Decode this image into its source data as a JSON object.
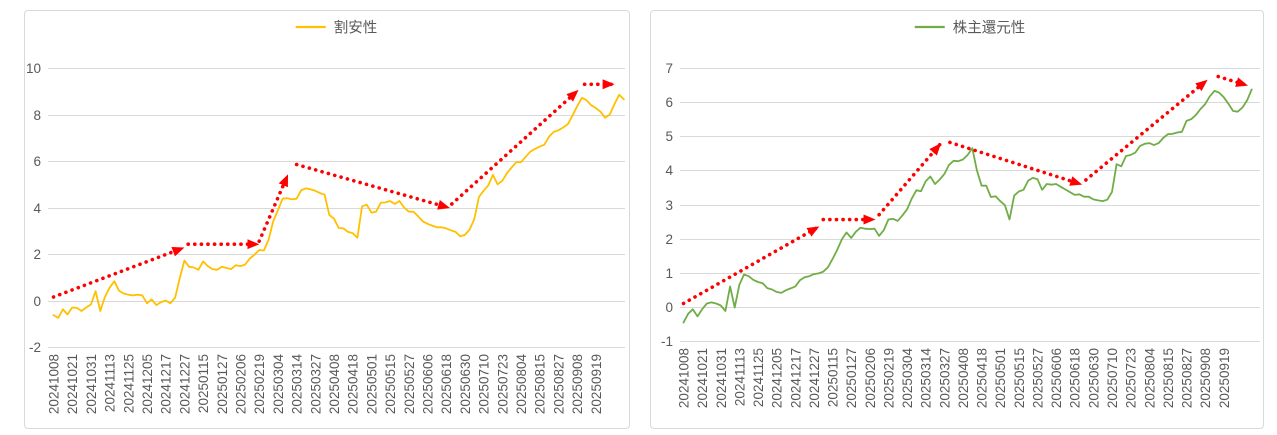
{
  "styles": {
    "background": "#FFFFFF",
    "panel_border_color": "#D9D9D9",
    "grid_color": "#D9D9D9",
    "axis_text_color": "#595959",
    "legend_text_color": "#595959",
    "arrow_color": "#FF0000",
    "left_series_color": "#FFC000",
    "right_series_color": "#70AD47"
  },
  "chart_data": [
    {
      "type": "line",
      "panel": "left",
      "title": "割安性",
      "legend_label": "割安性",
      "legend_position": "top-center",
      "grid": true,
      "y_axis": {
        "min": -2,
        "max": 10,
        "step": 2,
        "tick_labels": [
          "10",
          "8",
          "6",
          "4",
          "2",
          "0",
          "-2"
        ]
      },
      "ylim": [
        -2,
        10
      ],
      "x_tick_labels": [
        "20241008",
        "20241021",
        "20241031",
        "20241113",
        "20241125",
        "20241205",
        "20241217",
        "20241227",
        "20250115",
        "20250127",
        "20250206",
        "20250219",
        "20250304",
        "20250314",
        "20250327",
        "20250408",
        "20250418",
        "20250501",
        "20250515",
        "20250527",
        "20250606",
        "20250618",
        "20250630",
        "20250710",
        "20250723",
        "20250804",
        "20250815",
        "20250827",
        "20250908",
        "20250919"
      ],
      "samples_per_tick_interval": 4,
      "series": [
        {
          "name": "割安性",
          "color": "#FFC000",
          "values": [
            -0.63,
            -0.75,
            -0.38,
            -0.6,
            -0.3,
            -0.32,
            -0.45,
            -0.3,
            -0.17,
            0.4,
            -0.45,
            0.15,
            0.55,
            0.83,
            0.42,
            0.3,
            0.25,
            0.22,
            0.25,
            0.22,
            -0.12,
            0.05,
            -0.2,
            -0.07,
            0.0,
            -0.12,
            0.12,
            0.95,
            1.72,
            1.45,
            1.42,
            1.32,
            1.68,
            1.48,
            1.35,
            1.32,
            1.45,
            1.4,
            1.35,
            1.52,
            1.48,
            1.55,
            1.8,
            1.97,
            2.17,
            2.15,
            2.6,
            3.4,
            3.88,
            4.38,
            4.4,
            4.35,
            4.38,
            4.75,
            4.82,
            4.78,
            4.72,
            4.62,
            4.55,
            3.68,
            3.52,
            3.12,
            3.1,
            2.95,
            2.9,
            2.7,
            4.05,
            4.12,
            3.78,
            3.82,
            4.2,
            4.22,
            4.28,
            4.15,
            4.28,
            4.0,
            3.82,
            3.82,
            3.62,
            3.4,
            3.3,
            3.22,
            3.15,
            3.15,
            3.1,
            3.02,
            2.95,
            2.76,
            2.82,
            3.05,
            3.5,
            4.45,
            4.72,
            4.95,
            5.4,
            5.0,
            5.15,
            5.48,
            5.72,
            5.95,
            5.95,
            6.18,
            6.4,
            6.52,
            6.62,
            6.7,
            7.05,
            7.25,
            7.32,
            7.44,
            7.58,
            7.95,
            8.35,
            8.72,
            8.62,
            8.4,
            8.28,
            8.12,
            7.86,
            8.0,
            8.45,
            8.85,
            8.65
          ]
        }
      ],
      "trend_annotation": {
        "style": "dotted-arrow",
        "color": "#FF0000",
        "segments_tick_value": [
          [
            0,
            0.15,
            6.9,
            2.25
          ],
          [
            7.2,
            2.42,
            10.9,
            2.42
          ],
          [
            11.0,
            2.55,
            12.5,
            5.35
          ],
          [
            13.0,
            5.85,
            21.1,
            4.0
          ],
          [
            21.3,
            4.15,
            28.0,
            9.0
          ],
          [
            28.4,
            9.3,
            29.9,
            9.3
          ]
        ]
      }
    },
    {
      "type": "line",
      "panel": "right",
      "title": "株主還元性",
      "legend_label": "株主還元性",
      "legend_position": "top-center",
      "grid": true,
      "y_axis": {
        "min": -1,
        "max": 7,
        "step": 1,
        "tick_labels": [
          "7",
          "6",
          "5",
          "4",
          "3",
          "2",
          "1",
          "0",
          "-1"
        ]
      },
      "ylim": [
        -1,
        7
      ],
      "x_tick_labels": [
        "20241008",
        "20241021",
        "20241031",
        "20241113",
        "20241125",
        "20241205",
        "20241217",
        "20241227",
        "20250115",
        "20250127",
        "20250206",
        "20250219",
        "20250304",
        "20250314",
        "20250327",
        "20250408",
        "20250418",
        "20250501",
        "20250515",
        "20250527",
        "20250606",
        "20250618",
        "20250630",
        "20250710",
        "20250723",
        "20250804",
        "20250815",
        "20250827",
        "20250908",
        "20250919"
      ],
      "samples_per_tick_interval": 4,
      "series": [
        {
          "name": "株主還元性",
          "color": "#70AD47",
          "values": [
            -0.46,
            -0.2,
            -0.07,
            -0.28,
            -0.07,
            0.1,
            0.13,
            0.1,
            0.04,
            -0.12,
            0.6,
            -0.02,
            0.65,
            0.95,
            0.9,
            0.79,
            0.73,
            0.69,
            0.55,
            0.51,
            0.44,
            0.41,
            0.49,
            0.54,
            0.6,
            0.78,
            0.87,
            0.9,
            0.96,
            0.98,
            1.03,
            1.16,
            1.4,
            1.67,
            1.98,
            2.18,
            2.02,
            2.2,
            2.32,
            2.29,
            2.28,
            2.29,
            2.08,
            2.25,
            2.56,
            2.58,
            2.52,
            2.68,
            2.86,
            3.17,
            3.42,
            3.39,
            3.68,
            3.82,
            3.6,
            3.73,
            3.89,
            4.16,
            4.28,
            4.27,
            4.32,
            4.45,
            4.65,
            4.0,
            3.55,
            3.55,
            3.22,
            3.24,
            3.1,
            2.98,
            2.56,
            3.26,
            3.38,
            3.43,
            3.7,
            3.78,
            3.74,
            3.43,
            3.6,
            3.58,
            3.6,
            3.52,
            3.44,
            3.36,
            3.28,
            3.3,
            3.23,
            3.23,
            3.15,
            3.12,
            3.1,
            3.14,
            3.37,
            4.18,
            4.12,
            4.42,
            4.45,
            4.52,
            4.71,
            4.78,
            4.8,
            4.74,
            4.8,
            4.95,
            5.06,
            5.07,
            5.11,
            5.13,
            5.45,
            5.5,
            5.62,
            5.8,
            5.94,
            6.17,
            6.33,
            6.28,
            6.14,
            5.95,
            5.74,
            5.72,
            5.84,
            6.05,
            6.37
          ]
        }
      ],
      "trend_annotation": {
        "style": "dotted-arrow",
        "color": "#FF0000",
        "segments_tick_value": [
          [
            0,
            0.1,
            7.2,
            2.33
          ],
          [
            7.5,
            2.56,
            10.2,
            2.56
          ],
          [
            10.5,
            2.7,
            13.75,
            4.75
          ],
          [
            14.3,
            4.82,
            21.3,
            3.6
          ],
          [
            21.6,
            3.72,
            28.05,
            6.62
          ],
          [
            28.7,
            6.75,
            30.2,
            6.5
          ]
        ]
      }
    }
  ]
}
